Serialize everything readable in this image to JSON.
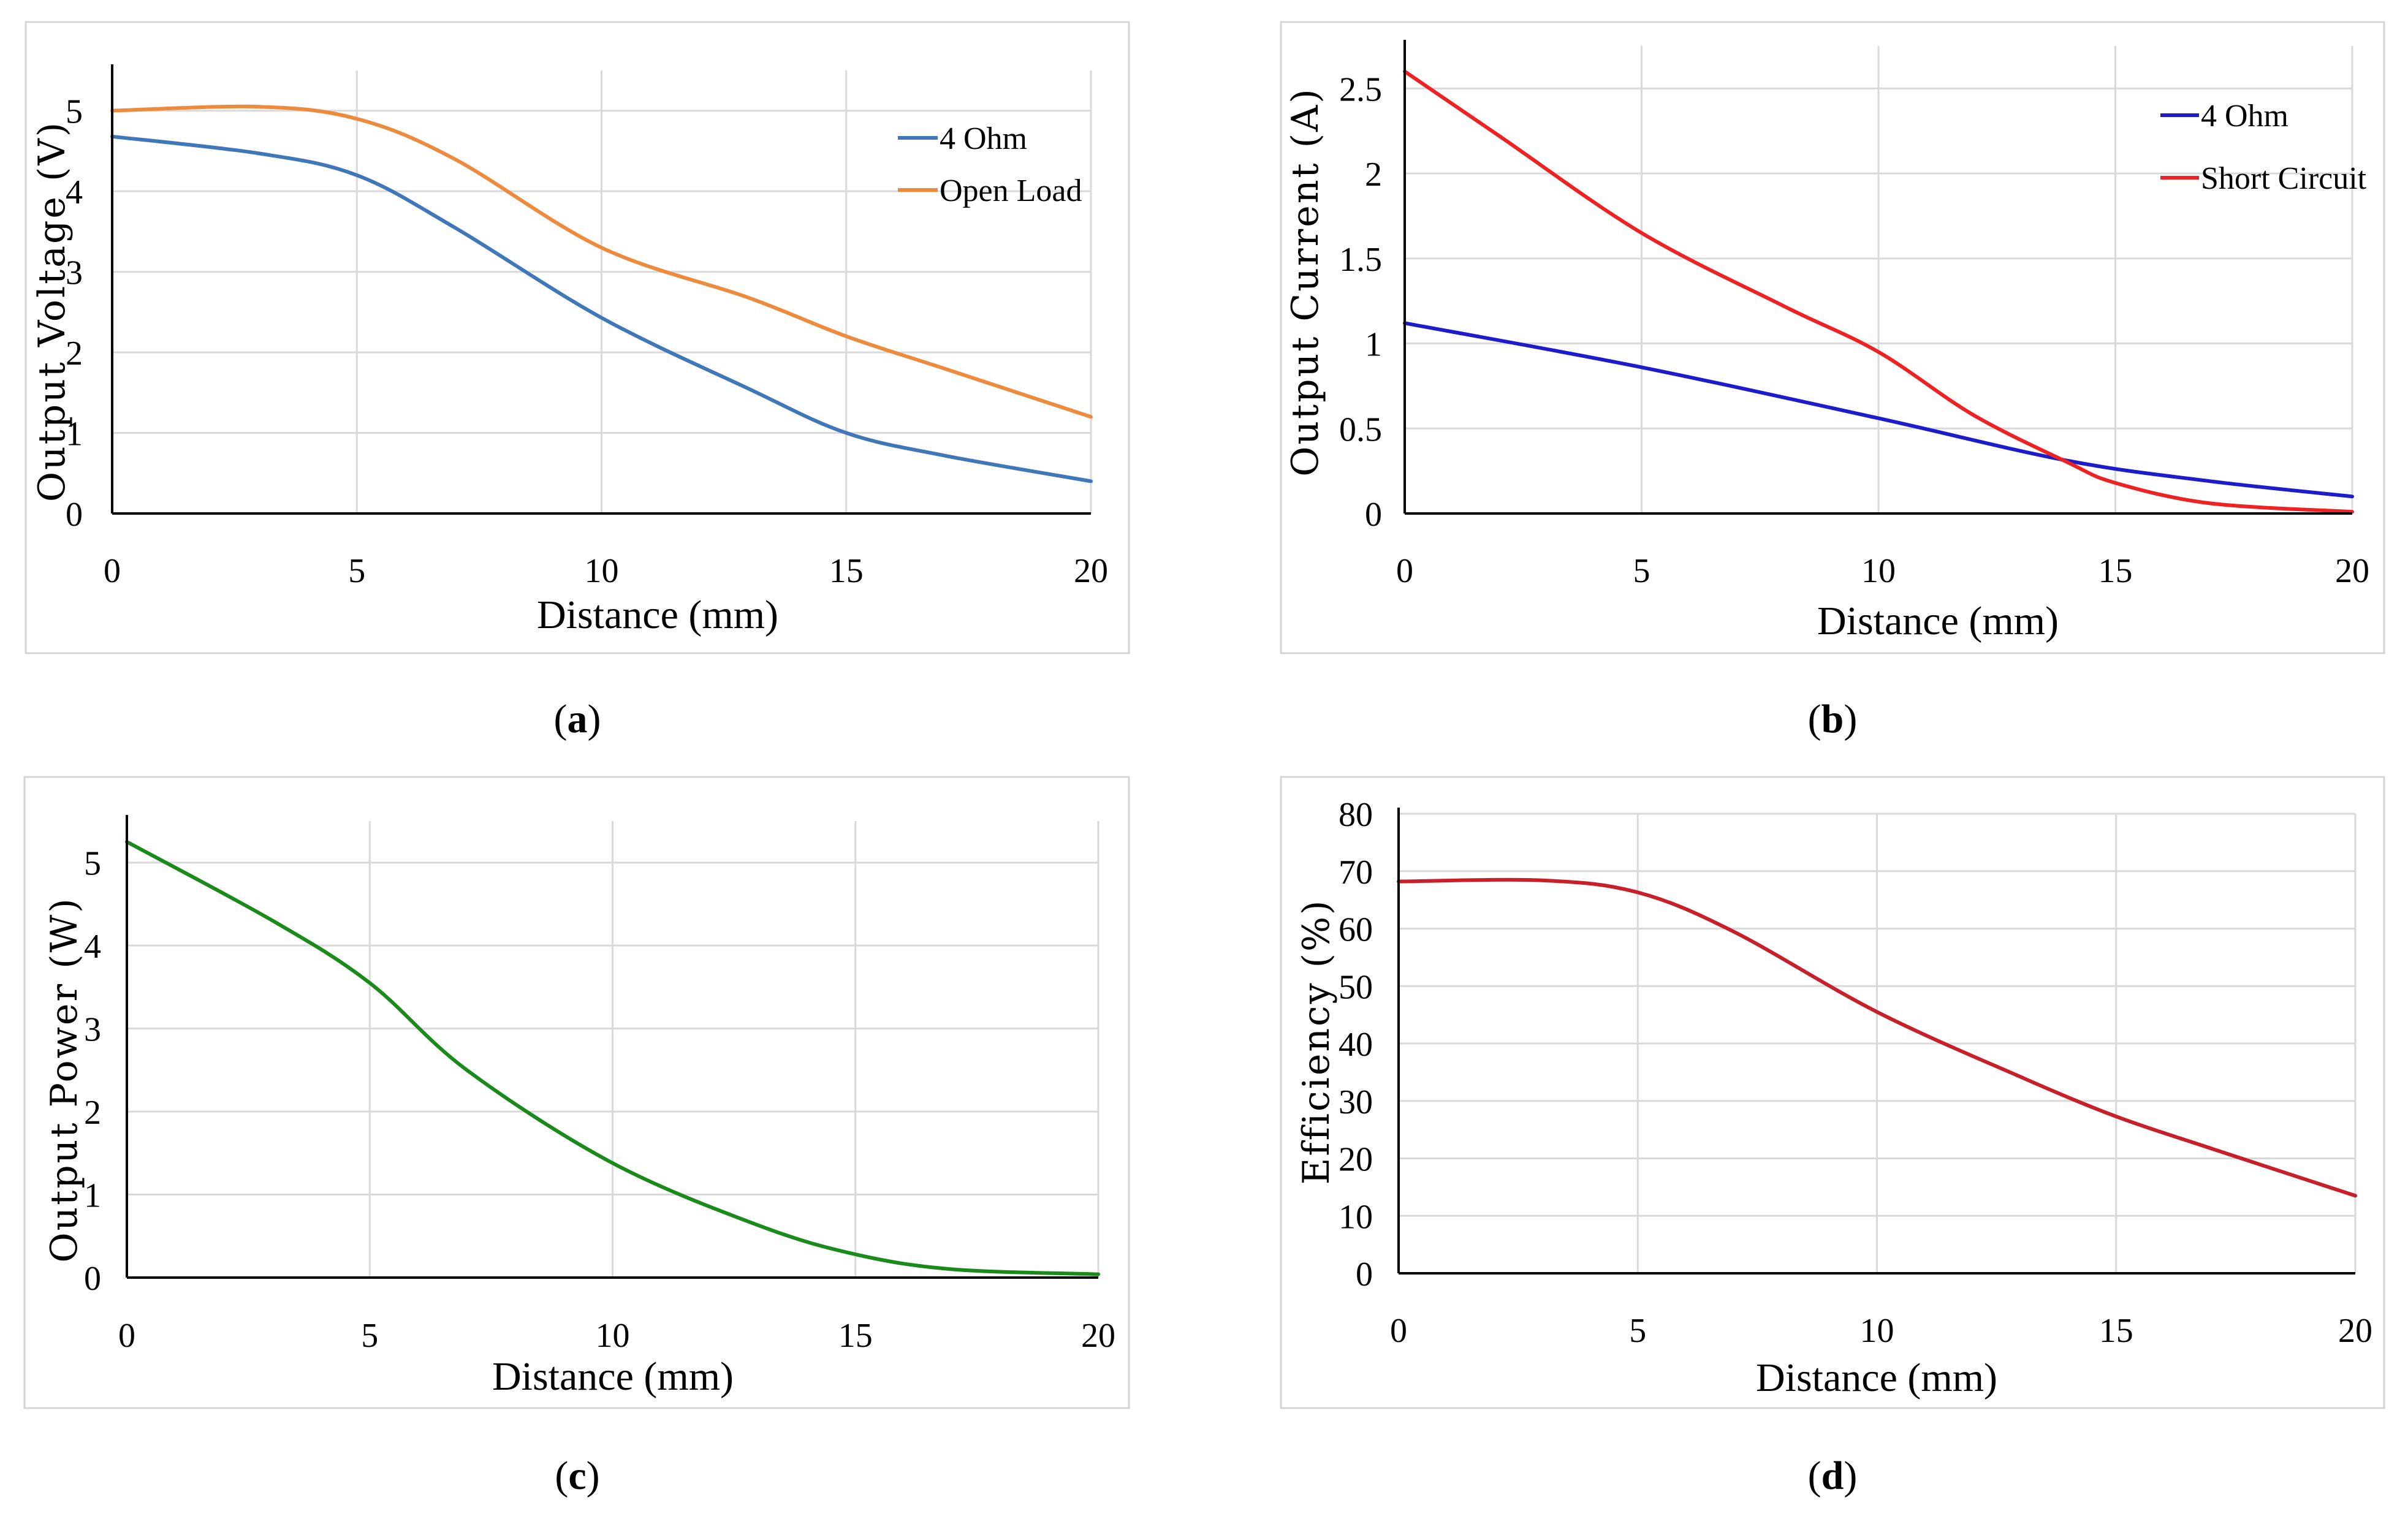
{
  "chart_data": [
    {
      "type": "line",
      "caption_letter": "a",
      "xlabel": "Distance (mm)",
      "ylabel": "Output Voltage (V)",
      "xlim": [
        0,
        20
      ],
      "ylim": [
        0,
        5.5
      ],
      "xticks": [
        0,
        5,
        10,
        15,
        20
      ],
      "yticks": [
        0,
        1,
        2,
        3,
        4,
        5
      ],
      "legend_position": "top-right",
      "series": [
        {
          "name": "4 Ohm",
          "color": "#3f77b8",
          "x": [
            0,
            3,
            5,
            7,
            10,
            13,
            15,
            17,
            20
          ],
          "y": [
            4.68,
            4.47,
            4.2,
            3.55,
            2.43,
            1.55,
            1.0,
            0.72,
            0.4
          ]
        },
        {
          "name": "Open Load",
          "color": "#ee8a3c",
          "x": [
            0,
            3,
            5,
            7,
            10,
            13,
            15,
            17,
            20
          ],
          "y": [
            5.0,
            5.05,
            4.9,
            4.4,
            3.3,
            2.68,
            2.2,
            1.8,
            1.2
          ]
        }
      ]
    },
    {
      "type": "line",
      "caption_letter": "b",
      "xlabel": "Distance (mm)",
      "ylabel": "Output Current (A)",
      "xlim": [
        0,
        20
      ],
      "ylim": [
        0,
        2.75
      ],
      "xticks": [
        0,
        5,
        10,
        15,
        20
      ],
      "yticks": [
        "0",
        "0.5",
        "1",
        "1.5",
        "2",
        "2.5"
      ],
      "legend_position": "top-right",
      "series": [
        {
          "name": "4 Ohm",
          "color": "#1c1ccc",
          "x": [
            0,
            5,
            10,
            14,
            17,
            20
          ],
          "y": [
            1.12,
            0.86,
            0.56,
            0.31,
            0.19,
            0.1
          ]
        },
        {
          "name": "Short Circuit",
          "color": "#ee2222",
          "x": [
            0,
            2,
            5,
            8,
            10,
            12,
            14,
            15,
            17,
            20
          ],
          "y": [
            2.6,
            2.22,
            1.65,
            1.22,
            0.95,
            0.58,
            0.3,
            0.18,
            0.06,
            0.01
          ]
        }
      ]
    },
    {
      "type": "line",
      "caption_letter": "c",
      "xlabel": "Distance (mm)",
      "ylabel": "Output Power (W)",
      "xlim": [
        0,
        20
      ],
      "ylim": [
        0,
        5.5
      ],
      "xticks": [
        0,
        5,
        10,
        15,
        20
      ],
      "yticks": [
        0,
        1,
        2,
        3,
        4,
        5
      ],
      "series": [
        {
          "name": "Output Power",
          "color": "#1a8a1a",
          "x": [
            0,
            3,
            5,
            7,
            10,
            13,
            15,
            17,
            20
          ],
          "y": [
            5.25,
            4.3,
            3.55,
            2.5,
            1.38,
            0.63,
            0.28,
            0.1,
            0.04
          ]
        }
      ]
    },
    {
      "type": "line",
      "caption_letter": "d",
      "xlabel": "Distance (mm)",
      "ylabel": "Efficiency (%)",
      "xlim": [
        0,
        20
      ],
      "ylim": [
        0,
        80
      ],
      "xticks": [
        0,
        5,
        10,
        15,
        20
      ],
      "yticks": [
        0,
        10,
        20,
        30,
        40,
        50,
        60,
        70,
        80
      ],
      "series": [
        {
          "name": "Efficiency",
          "color": "#c8202a",
          "x": [
            0,
            3,
            5,
            7,
            10,
            13,
            15,
            17,
            20
          ],
          "y": [
            68.2,
            68.4,
            66.3,
            59.5,
            45.5,
            34.2,
            27.3,
            21.7,
            13.5
          ]
        }
      ]
    }
  ]
}
